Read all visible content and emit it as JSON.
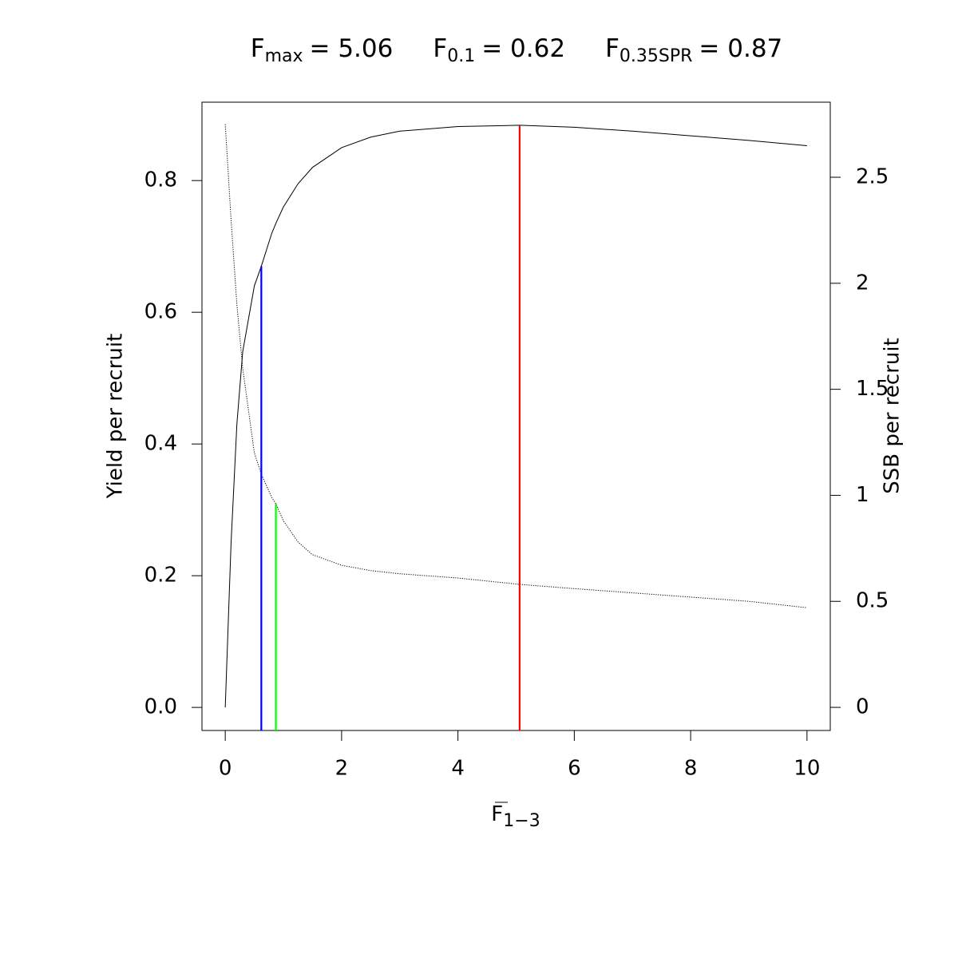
{
  "chart_data": {
    "type": "line",
    "title": [
      {
        "symbol": "F",
        "subscript": "max",
        "text": "= 5.06"
      },
      {
        "symbol": "F",
        "subscript": "0.1",
        "text": "= 0.62"
      },
      {
        "symbol": "F",
        "subscript": "0.35SPR",
        "text": "= 0.87"
      }
    ],
    "x_label": {
      "symbol": "F",
      "subscript": "1−3",
      "overline": true
    },
    "y_label": "Yield per recruit",
    "y2_label": "SSB per recruit",
    "x": [
      0,
      0.1,
      0.2,
      0.3,
      0.5,
      0.62,
      0.8,
      0.87,
      1,
      1.25,
      1.5,
      2,
      2.5,
      3,
      4,
      5.06,
      6,
      7,
      8,
      9,
      10
    ],
    "series": [
      {
        "color": "#000000",
        "dash": "solid",
        "values": [
          0,
          0.25,
          0.43,
          0.54,
          0.64,
          0.67,
          0.72,
          0.735,
          0.76,
          0.795,
          0.82,
          0.85,
          0.866,
          0.875,
          0.882,
          0.884,
          0.881,
          0.875,
          0.868,
          0.861,
          0.853
        ]
      },
      {
        "color": "#000000",
        "dash": "dotted",
        "axis": "y2",
        "values": [
          2.75,
          2.3,
          1.9,
          1.6,
          1.2,
          1.1,
          0.99,
          0.96,
          0.88,
          0.78,
          0.72,
          0.67,
          0.645,
          0.63,
          0.61,
          0.58,
          0.56,
          0.54,
          0.52,
          0.5,
          0.47
        ]
      }
    ],
    "reference_lines": [
      {
        "x": 5.06,
        "top": 0.884,
        "color": "#ff0000"
      },
      {
        "x": 0.62,
        "top": 0.67,
        "color": "#0000ff"
      },
      {
        "x": 0.87,
        "top": 0.96,
        "color": "#00ff00",
        "axis": "y2"
      }
    ],
    "xlim": [
      -0.4,
      10.4
    ],
    "xticks": [
      0,
      2,
      4,
      6,
      8,
      10
    ],
    "ylim": [
      -0.035,
      0.919
    ],
    "yticks": [
      {
        "value": 0,
        "label": "0.0"
      },
      0.2,
      0.4,
      0.6,
      0.8
    ],
    "y2lim": [
      -0.109,
      2.854
    ],
    "y2ticks": [
      0,
      0.5,
      1,
      1.5,
      2,
      2.5
    ]
  }
}
